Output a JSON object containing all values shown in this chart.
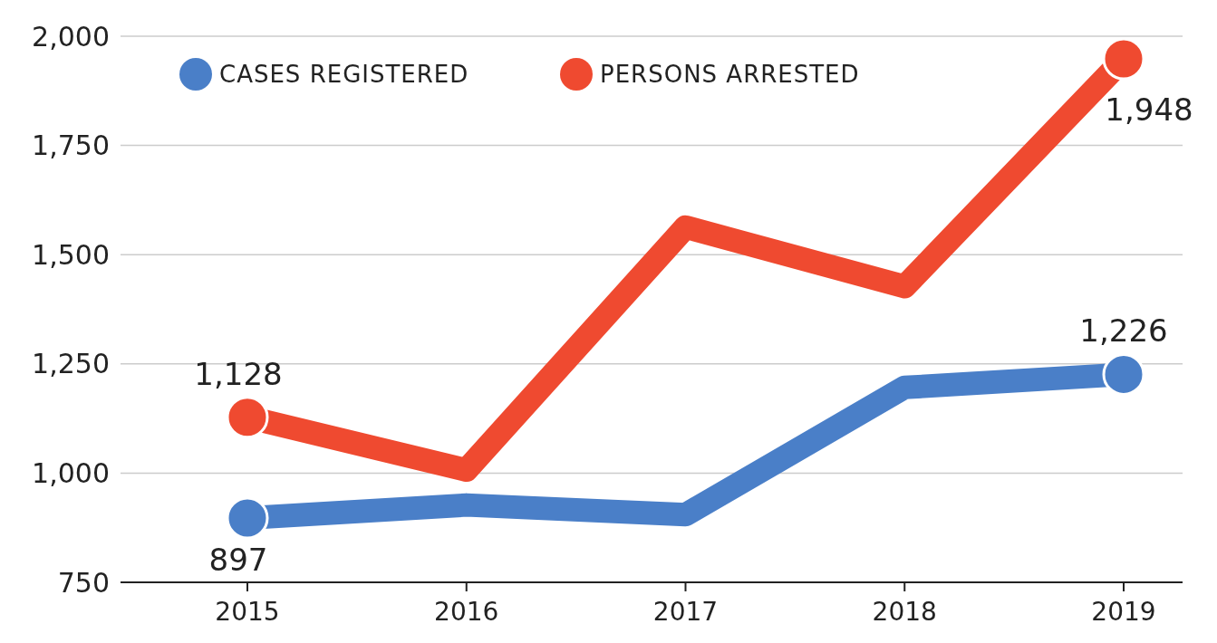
{
  "chart_data": {
    "type": "line",
    "categories": [
      "2015",
      "2016",
      "2017",
      "2018",
      "2019"
    ],
    "series": [
      {
        "name": "CASES REGISTERED",
        "color": "#4a7fc8",
        "values": [
          897,
          927,
          905,
          1196,
          1226
        ],
        "value_labels": [
          "897",
          null,
          null,
          null,
          "1,226"
        ]
      },
      {
        "name": "PERSONS ARRESTED",
        "color": "#ef4a30",
        "values": [
          1128,
          1007,
          1563,
          1427,
          1948
        ],
        "value_labels": [
          "1,128",
          null,
          null,
          null,
          "1,948"
        ]
      }
    ],
    "ylim": [
      750,
      2000
    ],
    "yticks": [
      {
        "value": 750,
        "label": "750"
      },
      {
        "value": 1000,
        "label": "1,000"
      },
      {
        "value": 1250,
        "label": "1,250"
      },
      {
        "value": 1500,
        "label": "1,500"
      },
      {
        "value": 1750,
        "label": "1,750"
      },
      {
        "value": 2000,
        "label": "2,000"
      }
    ],
    "grid": "y",
    "legend": "top left",
    "line_style": "solid"
  }
}
